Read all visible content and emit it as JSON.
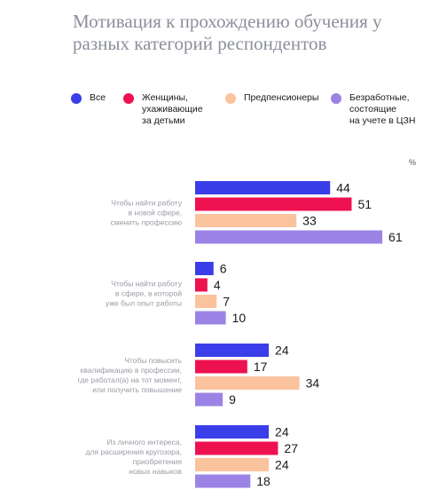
{
  "title": "Мотивация к прохождению обучения у разных категорий респондентов",
  "unit": "%",
  "colors": {
    "series": [
      "#3a3ee8",
      "#ee1150",
      "#fbc29e",
      "#9b83e6"
    ]
  },
  "chart_data": {
    "type": "bar",
    "orientation": "horizontal",
    "title": "Мотивация к прохождению обучения у разных категорий респондентов",
    "unit": "%",
    "legend_position": "top",
    "categories": [
      [
        "Чтобы найти работу",
        "в новой сфере,",
        "сменить профессию"
      ],
      [
        "Чтобы найти работу",
        "в сфере, в которой",
        "уже был опыт работы"
      ],
      [
        "Чтобы повысить",
        "квалификацию в профессии,",
        "где работал(а) на тот момент,",
        "или получить повышение"
      ],
      [
        "Из личного интереса,",
        "для расширения кругозора,",
        "приобретения",
        "новых навыков"
      ]
    ],
    "series": [
      {
        "name": "Все",
        "values": [
          44,
          6,
          24,
          24
        ]
      },
      {
        "name": "Женщины,\nухаживающие\nза детьми",
        "values": [
          51,
          4,
          17,
          27
        ]
      },
      {
        "name": "Предпенсионеры",
        "values": [
          33,
          7,
          34,
          24
        ]
      },
      {
        "name": "Безработные,\nсостоящие\nна учете в ЦЗН",
        "values": [
          61,
          10,
          9,
          18
        ]
      }
    ]
  }
}
